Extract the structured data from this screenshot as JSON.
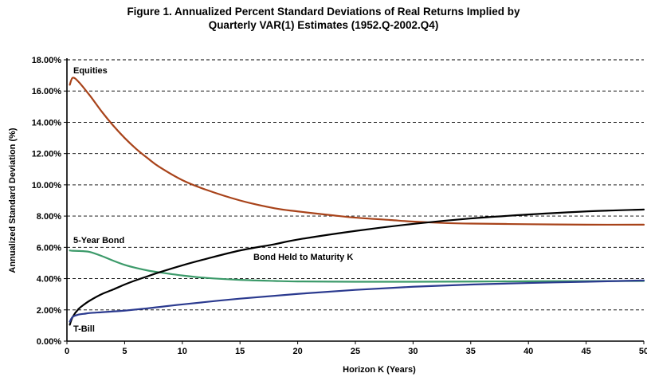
{
  "figure": {
    "title_line1": "Figure 1. Annualized Percent Standard Deviations of Real Returns Implied by",
    "title_line2": "Quarterly VAR(1) Estimates (1952.Q-2002.Q4)"
  },
  "chart_data": {
    "type": "line",
    "title": "Figure 1. Annualized Percent Standard Deviations of Real Returns Implied by Quarterly VAR(1) Estimates (1952.Q-2002.Q4)",
    "xlabel": "Horizon K (Years)",
    "ylabel": "Annualized Standard Deviation (%)",
    "xlim": [
      0,
      50
    ],
    "ylim": [
      0,
      18
    ],
    "x_ticks": [
      "0",
      "5",
      "10",
      "15",
      "20",
      "25",
      "30",
      "35",
      "40",
      "45",
      "50"
    ],
    "y_ticks": [
      "0.00%",
      "2.00%",
      "4.00%",
      "6.00%",
      "8.00%",
      "10.00%",
      "12.00%",
      "14.00%",
      "16.00%",
      "18.00%"
    ],
    "y_tick_values": [
      0,
      2,
      4,
      6,
      8,
      10,
      12,
      14,
      16,
      18
    ],
    "x_tick_values": [
      0,
      5,
      10,
      15,
      20,
      25,
      30,
      35,
      40,
      45,
      50
    ],
    "grid": "horizontal dashed",
    "series": [
      {
        "name": "Equities",
        "color": "#a8431a",
        "x": [
          0.25,
          0.5,
          1,
          2,
          3,
          4,
          5,
          6,
          7,
          8,
          10,
          12,
          15,
          18,
          20,
          23,
          25,
          28,
          30,
          33,
          35,
          40,
          45,
          50
        ],
        "y": [
          16.4,
          16.85,
          16.6,
          15.7,
          14.7,
          13.8,
          13.0,
          12.3,
          11.7,
          11.15,
          10.3,
          9.7,
          9.0,
          8.5,
          8.3,
          8.05,
          7.9,
          7.75,
          7.65,
          7.55,
          7.52,
          7.48,
          7.45,
          7.45
        ]
      },
      {
        "name": "5-Year Bond",
        "color": "#3c9a6a",
        "x": [
          0.25,
          0.5,
          1,
          1.5,
          2,
          3,
          4,
          5,
          6,
          7,
          8,
          10,
          12,
          15,
          18,
          20,
          25,
          30,
          35,
          40,
          45,
          50
        ],
        "y": [
          5.8,
          5.78,
          5.77,
          5.75,
          5.7,
          5.45,
          5.15,
          4.88,
          4.68,
          4.52,
          4.4,
          4.2,
          4.05,
          3.92,
          3.85,
          3.82,
          3.8,
          3.8,
          3.81,
          3.83,
          3.84,
          3.85
        ]
      },
      {
        "name": "Bond Held to Maturity K",
        "color": "#000000",
        "x": [
          0.25,
          0.5,
          1,
          1.5,
          2,
          3,
          4,
          5,
          6,
          7,
          8,
          10,
          12,
          15,
          18,
          20,
          25,
          30,
          35,
          40,
          45,
          50
        ],
        "y": [
          1.05,
          1.55,
          2.05,
          2.35,
          2.6,
          3.0,
          3.3,
          3.62,
          3.9,
          4.15,
          4.4,
          4.85,
          5.25,
          5.8,
          6.2,
          6.5,
          7.05,
          7.5,
          7.85,
          8.1,
          8.3,
          8.42
        ]
      },
      {
        "name": "T-Bill",
        "color": "#2b3a8f",
        "x": [
          0.25,
          0.5,
          1,
          1.5,
          2,
          3,
          4,
          5,
          7,
          10,
          15,
          20,
          25,
          30,
          35,
          40,
          45,
          50
        ],
        "y": [
          1.25,
          1.55,
          1.7,
          1.75,
          1.8,
          1.85,
          1.9,
          1.95,
          2.1,
          2.35,
          2.72,
          3.02,
          3.28,
          3.48,
          3.62,
          3.72,
          3.8,
          3.88
        ]
      }
    ],
    "annotations": [
      "Equities",
      "5-Year Bond",
      "Bond Held to Maturity K",
      "T-Bill"
    ]
  }
}
